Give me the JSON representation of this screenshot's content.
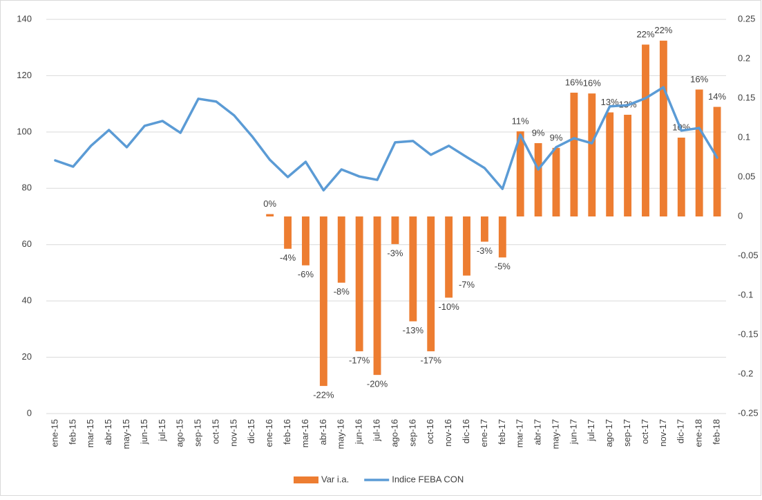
{
  "chart_data": {
    "type": "combo",
    "categories": [
      "ene-15",
      "feb-15",
      "mar-15",
      "abr-15",
      "may-15",
      "jun-15",
      "jul-15",
      "ago-15",
      "sep-15",
      "oct-15",
      "nov-15",
      "dic-15",
      "ene-16",
      "feb-16",
      "mar-16",
      "abr-16",
      "may-16",
      "jun-16",
      "jul-16",
      "ago-16",
      "sep-16",
      "oct-16",
      "nov-16",
      "dic-16",
      "ene-17",
      "feb-17",
      "mar-17",
      "abr-17",
      "may-17",
      "jun-17",
      "jul-17",
      "ago-17",
      "sep-17",
      "oct-17",
      "nov-17",
      "dic-17",
      "ene-18",
      "feb-18"
    ],
    "series": [
      {
        "name": "Var i.a.",
        "type": "bar",
        "axis": "y2",
        "color": "#ED7D31",
        "values": [
          null,
          null,
          null,
          null,
          null,
          null,
          null,
          null,
          null,
          null,
          null,
          null,
          0.003,
          -0.041,
          -0.062,
          -0.215,
          -0.084,
          -0.171,
          -0.201,
          -0.035,
          -0.133,
          -0.171,
          -0.103,
          -0.075,
          -0.032,
          -0.052,
          0.108,
          0.093,
          0.087,
          0.157,
          0.156,
          0.132,
          0.129,
          0.218,
          0.223,
          0.1,
          0.161,
          0.139
        ],
        "value_labels": [
          null,
          null,
          null,
          null,
          null,
          null,
          null,
          null,
          null,
          null,
          null,
          null,
          "0%",
          "-4%",
          "-6%",
          "-22%",
          "-8%",
          "-17%",
          "-20%",
          "-3%",
          "-13%",
          "-17%",
          "-10%",
          "-7%",
          "-3%",
          "-5%",
          "11%",
          "9%",
          "9%",
          "16%",
          "16%",
          "13%",
          "13%",
          "22%",
          "22%",
          "10%",
          "16%",
          "14%"
        ]
      },
      {
        "name": "Indice FEBA CON",
        "type": "line",
        "color": "#5B9BD5",
        "values": [
          89.9,
          87.7,
          95.1,
          100.7,
          94.6,
          102.2,
          103.9,
          99.7,
          111.8,
          110.8,
          105.9,
          98.5,
          90.1,
          84.0,
          89.4,
          79.3,
          86.7,
          84.2,
          83.0,
          96.3,
          96.8,
          91.9,
          95.1,
          91.1,
          87.2,
          79.8,
          99.0,
          86.7,
          94.6,
          97.8,
          96.0,
          109.1,
          109.5,
          112.0,
          115.9,
          100.5,
          101.4,
          90.9
        ]
      }
    ],
    "ylim": [
      0,
      140
    ],
    "yticks": [
      0,
      20,
      40,
      60,
      80,
      100,
      120,
      140
    ],
    "y2lim": [
      -0.25,
      0.25
    ],
    "y2ticks": [
      0.25,
      0.2,
      0.15,
      0.1,
      0.05,
      0,
      -0.05,
      -0.1,
      -0.15,
      -0.2,
      -0.25
    ],
    "grid": true,
    "legend": "bottom"
  }
}
